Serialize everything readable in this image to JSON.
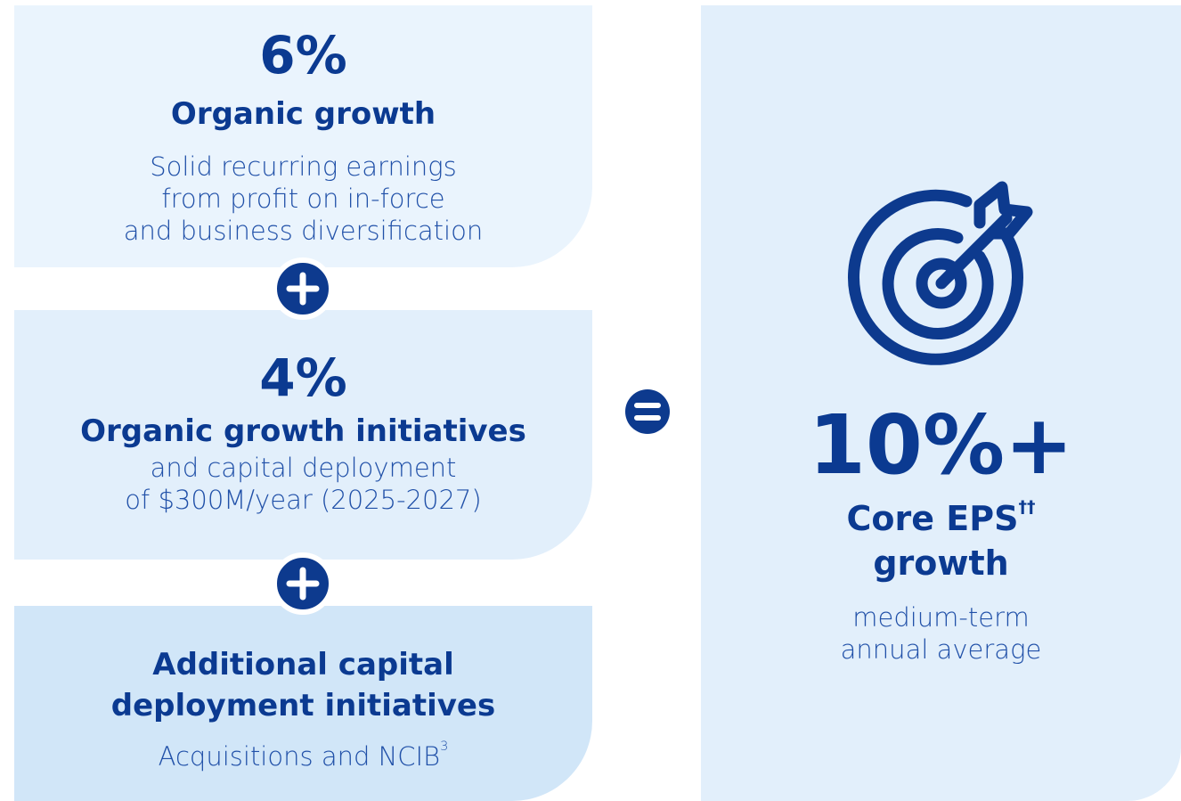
{
  "blocks": [
    {
      "value": "6%",
      "title": "Organic growth",
      "description": [
        "Solid recurring earnings",
        "from profit on in-force",
        "and business diversification"
      ]
    },
    {
      "value": "4%",
      "title": "Organic growth initiatives",
      "description": [
        "and capital deployment",
        "of $300M/year (2025-2027)"
      ]
    },
    {
      "title": [
        "Additional capital",
        "deployment initiatives"
      ],
      "description": "Acquisitions and NCIB",
      "description_sup": "3"
    }
  ],
  "result": {
    "value": "10%+",
    "title": "Core EPS",
    "title_sup": "††",
    "title_line2": "growth",
    "description": [
      "medium-term",
      "annual average"
    ]
  }
}
